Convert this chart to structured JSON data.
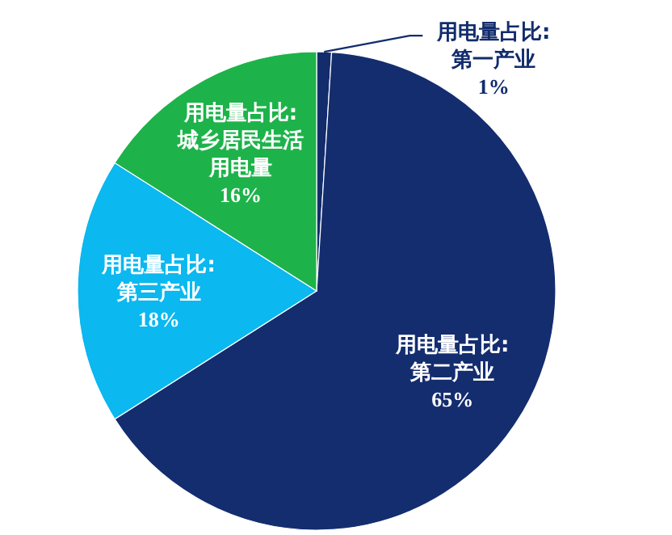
{
  "chart_data": {
    "type": "pie",
    "categories": [
      "用电量占比:第一产业",
      "用电量占比:第二产业",
      "用电量占比:第三产业",
      "用电量占比:城乡居民生活用电量"
    ],
    "values": [
      1,
      65,
      18,
      16
    ],
    "colors": [
      "#122c6c",
      "#142d6f",
      "#0bb8f0",
      "#1db34a"
    ],
    "value_labels": [
      "1%",
      "65%",
      "18%",
      "16%"
    ]
  }
}
